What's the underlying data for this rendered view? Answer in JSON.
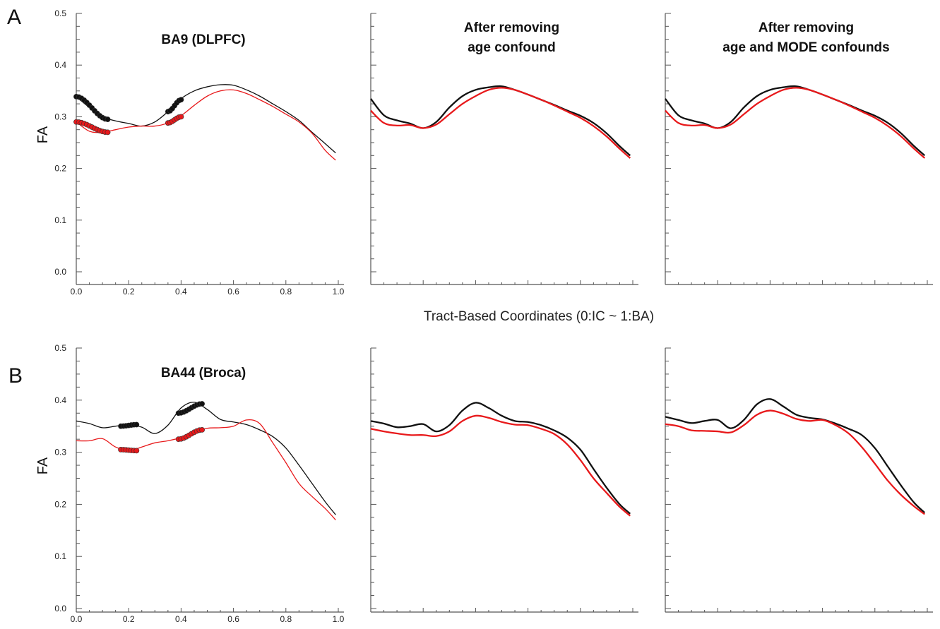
{
  "figure": {
    "panel_letters": [
      "A",
      "B"
    ],
    "shared_xlabel": "Tract-Based Coordinates (0:IC ~ 1:BA)",
    "colors": {
      "black_series": "#111111",
      "red_series": "#e8191b"
    }
  },
  "chart_data": [
    {
      "type": "line",
      "row": "A",
      "col": 1,
      "title_lines": [
        "BA9 (DLPFC)"
      ],
      "ylabel": "FA",
      "xlabel": "",
      "xlim": [
        0,
        1
      ],
      "ylim": [
        0,
        0.5
      ],
      "xticks": [
        "0.0",
        "0.2",
        "0.4",
        "0.6",
        "0.8",
        "1.0"
      ],
      "yticks": [
        "0.0",
        "0.1",
        "0.2",
        "0.3",
        "0.4",
        "0.5"
      ],
      "show_tick_labels": true,
      "line_width": "thin",
      "series": [
        {
          "color": "#111111",
          "x": [
            0,
            0.05,
            0.1,
            0.15,
            0.2,
            0.25,
            0.3,
            0.35,
            0.4,
            0.45,
            0.5,
            0.55,
            0.6,
            0.65,
            0.7,
            0.75,
            0.8,
            0.85,
            0.9,
            0.95,
            0.99
          ],
          "y": [
            0.339,
            0.318,
            0.3,
            0.292,
            0.287,
            0.282,
            0.29,
            0.31,
            0.335,
            0.35,
            0.358,
            0.362,
            0.361,
            0.352,
            0.34,
            0.325,
            0.31,
            0.293,
            0.27,
            0.248,
            0.23
          ]
        },
        {
          "color": "#e8191b",
          "x": [
            0,
            0.05,
            0.1,
            0.15,
            0.2,
            0.25,
            0.3,
            0.35,
            0.4,
            0.45,
            0.5,
            0.55,
            0.6,
            0.65,
            0.7,
            0.75,
            0.8,
            0.85,
            0.9,
            0.95,
            0.99
          ],
          "y": [
            0.29,
            0.272,
            0.27,
            0.275,
            0.28,
            0.282,
            0.282,
            0.288,
            0.302,
            0.322,
            0.34,
            0.35,
            0.352,
            0.345,
            0.333,
            0.32,
            0.305,
            0.29,
            0.268,
            0.235,
            0.216
          ]
        }
      ],
      "significant_segments": [
        {
          "color": "#111111",
          "x": [
            0,
            0.12
          ],
          "y_start": 0.339,
          "y_end": 0.295
        },
        {
          "color": "#111111",
          "x": [
            0.35,
            0.4
          ],
          "y_start": 0.31,
          "y_end": 0.333
        },
        {
          "color": "#e8191b",
          "x": [
            0,
            0.12
          ],
          "y_start": 0.29,
          "y_end": 0.27
        },
        {
          "color": "#e8191b",
          "x": [
            0.35,
            0.4
          ],
          "y_start": 0.288,
          "y_end": 0.3
        }
      ]
    },
    {
      "type": "line",
      "row": "A",
      "col": 2,
      "title_lines": [
        "After removing",
        "age confound"
      ],
      "ylabel": "",
      "xlabel": "",
      "xlim": [
        0,
        1
      ],
      "ylim": [
        0,
        0.5
      ],
      "xticks": [],
      "yticks": [],
      "show_tick_labels": false,
      "line_width": "thick",
      "series": [
        {
          "color": "#111111",
          "x": [
            0,
            0.05,
            0.1,
            0.15,
            0.2,
            0.25,
            0.3,
            0.35,
            0.4,
            0.45,
            0.5,
            0.55,
            0.6,
            0.65,
            0.7,
            0.75,
            0.8,
            0.85,
            0.9,
            0.95,
            0.99
          ],
          "y": [
            0.335,
            0.303,
            0.293,
            0.287,
            0.278,
            0.29,
            0.318,
            0.34,
            0.352,
            0.357,
            0.359,
            0.352,
            0.343,
            0.333,
            0.323,
            0.312,
            0.302,
            0.288,
            0.268,
            0.243,
            0.225
          ]
        },
        {
          "color": "#e8191b",
          "x": [
            0,
            0.05,
            0.1,
            0.15,
            0.2,
            0.25,
            0.3,
            0.35,
            0.4,
            0.45,
            0.5,
            0.55,
            0.6,
            0.65,
            0.7,
            0.75,
            0.8,
            0.85,
            0.9,
            0.95,
            0.99
          ],
          "y": [
            0.312,
            0.288,
            0.283,
            0.284,
            0.278,
            0.285,
            0.305,
            0.325,
            0.34,
            0.352,
            0.356,
            0.352,
            0.343,
            0.333,
            0.322,
            0.31,
            0.298,
            0.282,
            0.262,
            0.238,
            0.22
          ]
        }
      ]
    },
    {
      "type": "line",
      "row": "A",
      "col": 3,
      "title_lines": [
        "After removing",
        "age and MODE confounds"
      ],
      "ylabel": "",
      "xlabel": "",
      "xlim": [
        0,
        1
      ],
      "ylim": [
        0,
        0.5
      ],
      "xticks": [],
      "yticks": [],
      "show_tick_labels": false,
      "line_width": "thick",
      "series": [
        {
          "color": "#111111",
          "x": [
            0,
            0.05,
            0.1,
            0.15,
            0.2,
            0.25,
            0.3,
            0.35,
            0.4,
            0.45,
            0.5,
            0.55,
            0.6,
            0.65,
            0.7,
            0.75,
            0.8,
            0.85,
            0.9,
            0.95,
            0.99
          ],
          "y": [
            0.335,
            0.303,
            0.293,
            0.287,
            0.278,
            0.29,
            0.318,
            0.34,
            0.352,
            0.357,
            0.359,
            0.352,
            0.343,
            0.333,
            0.323,
            0.312,
            0.302,
            0.288,
            0.268,
            0.243,
            0.225
          ]
        },
        {
          "color": "#e8191b",
          "x": [
            0,
            0.05,
            0.1,
            0.15,
            0.2,
            0.25,
            0.3,
            0.35,
            0.4,
            0.45,
            0.5,
            0.55,
            0.6,
            0.65,
            0.7,
            0.75,
            0.8,
            0.85,
            0.9,
            0.95,
            0.99
          ],
          "y": [
            0.312,
            0.288,
            0.283,
            0.284,
            0.278,
            0.285,
            0.305,
            0.325,
            0.34,
            0.352,
            0.356,
            0.352,
            0.343,
            0.333,
            0.322,
            0.31,
            0.298,
            0.282,
            0.262,
            0.238,
            0.22
          ]
        }
      ]
    },
    {
      "type": "line",
      "row": "B",
      "col": 1,
      "title_lines": [
        "BA44 (Broca)"
      ],
      "ylabel": "FA",
      "xlabel": "",
      "xlim": [
        0,
        1
      ],
      "ylim": [
        0,
        0.5
      ],
      "xticks": [
        "0.0",
        "0.2",
        "0.4",
        "0.6",
        "0.8",
        "1.0"
      ],
      "yticks": [
        "0.0",
        "0.1",
        "0.2",
        "0.3",
        "0.4",
        "0.5"
      ],
      "show_tick_labels": true,
      "line_width": "thin",
      "series": [
        {
          "color": "#111111",
          "x": [
            0,
            0.05,
            0.1,
            0.15,
            0.2,
            0.25,
            0.3,
            0.35,
            0.4,
            0.45,
            0.5,
            0.55,
            0.6,
            0.65,
            0.7,
            0.75,
            0.8,
            0.85,
            0.9,
            0.95,
            0.99
          ],
          "y": [
            0.36,
            0.355,
            0.347,
            0.35,
            0.353,
            0.348,
            0.336,
            0.352,
            0.385,
            0.396,
            0.382,
            0.363,
            0.358,
            0.353,
            0.343,
            0.33,
            0.308,
            0.275,
            0.24,
            0.205,
            0.18
          ]
        },
        {
          "color": "#e8191b",
          "x": [
            0,
            0.05,
            0.1,
            0.15,
            0.2,
            0.25,
            0.3,
            0.35,
            0.4,
            0.45,
            0.5,
            0.55,
            0.6,
            0.65,
            0.7,
            0.75,
            0.8,
            0.85,
            0.9,
            0.95,
            0.99
          ],
          "y": [
            0.322,
            0.322,
            0.326,
            0.31,
            0.303,
            0.31,
            0.318,
            0.322,
            0.328,
            0.338,
            0.346,
            0.347,
            0.35,
            0.362,
            0.355,
            0.318,
            0.28,
            0.24,
            0.215,
            0.192,
            0.17
          ]
        }
      ],
      "significant_segments": [
        {
          "color": "#111111",
          "x": [
            0.17,
            0.23
          ],
          "y_start": 0.35,
          "y_end": 0.353
        },
        {
          "color": "#111111",
          "x": [
            0.39,
            0.48
          ],
          "y_start": 0.375,
          "y_end": 0.393
        },
        {
          "color": "#e8191b",
          "x": [
            0.17,
            0.23
          ],
          "y_start": 0.305,
          "y_end": 0.303
        },
        {
          "color": "#e8191b",
          "x": [
            0.39,
            0.48
          ],
          "y_start": 0.325,
          "y_end": 0.343
        }
      ]
    },
    {
      "type": "line",
      "row": "B",
      "col": 2,
      "title_lines": [],
      "ylabel": "",
      "xlabel": "",
      "xlim": [
        0,
        1
      ],
      "ylim": [
        0,
        0.5
      ],
      "xticks": [],
      "yticks": [],
      "show_tick_labels": false,
      "line_width": "thick",
      "series": [
        {
          "color": "#111111",
          "x": [
            0,
            0.05,
            0.1,
            0.15,
            0.2,
            0.25,
            0.3,
            0.35,
            0.4,
            0.45,
            0.5,
            0.55,
            0.6,
            0.65,
            0.7,
            0.75,
            0.8,
            0.85,
            0.9,
            0.95,
            0.99
          ],
          "y": [
            0.36,
            0.355,
            0.348,
            0.35,
            0.354,
            0.34,
            0.352,
            0.38,
            0.395,
            0.385,
            0.37,
            0.36,
            0.358,
            0.352,
            0.342,
            0.328,
            0.305,
            0.268,
            0.232,
            0.2,
            0.182
          ]
        },
        {
          "color": "#e8191b",
          "x": [
            0,
            0.05,
            0.1,
            0.15,
            0.2,
            0.25,
            0.3,
            0.35,
            0.4,
            0.45,
            0.5,
            0.55,
            0.6,
            0.65,
            0.7,
            0.75,
            0.8,
            0.85,
            0.9,
            0.95,
            0.99
          ],
          "y": [
            0.345,
            0.34,
            0.336,
            0.333,
            0.333,
            0.331,
            0.34,
            0.36,
            0.37,
            0.366,
            0.358,
            0.353,
            0.352,
            0.345,
            0.335,
            0.315,
            0.285,
            0.25,
            0.222,
            0.195,
            0.178
          ]
        }
      ]
    },
    {
      "type": "line",
      "row": "B",
      "col": 3,
      "title_lines": [],
      "ylabel": "",
      "xlabel": "",
      "xlim": [
        0,
        1
      ],
      "ylim": [
        0,
        0.5
      ],
      "xticks": [],
      "yticks": [],
      "show_tick_labels": false,
      "line_width": "thick",
      "series": [
        {
          "color": "#111111",
          "x": [
            0,
            0.05,
            0.1,
            0.15,
            0.2,
            0.25,
            0.3,
            0.35,
            0.4,
            0.45,
            0.5,
            0.55,
            0.6,
            0.65,
            0.7,
            0.75,
            0.8,
            0.85,
            0.9,
            0.95,
            0.99
          ],
          "y": [
            0.368,
            0.362,
            0.356,
            0.36,
            0.362,
            0.346,
            0.362,
            0.392,
            0.402,
            0.388,
            0.372,
            0.366,
            0.363,
            0.355,
            0.345,
            0.333,
            0.308,
            0.272,
            0.236,
            0.203,
            0.184
          ]
        },
        {
          "color": "#e8191b",
          "x": [
            0,
            0.05,
            0.1,
            0.15,
            0.2,
            0.25,
            0.3,
            0.35,
            0.4,
            0.45,
            0.5,
            0.55,
            0.6,
            0.65,
            0.7,
            0.75,
            0.8,
            0.85,
            0.9,
            0.95,
            0.99
          ],
          "y": [
            0.354,
            0.35,
            0.342,
            0.341,
            0.34,
            0.338,
            0.352,
            0.372,
            0.38,
            0.374,
            0.364,
            0.36,
            0.362,
            0.352,
            0.336,
            0.31,
            0.278,
            0.245,
            0.218,
            0.196,
            0.181
          ]
        }
      ]
    }
  ]
}
